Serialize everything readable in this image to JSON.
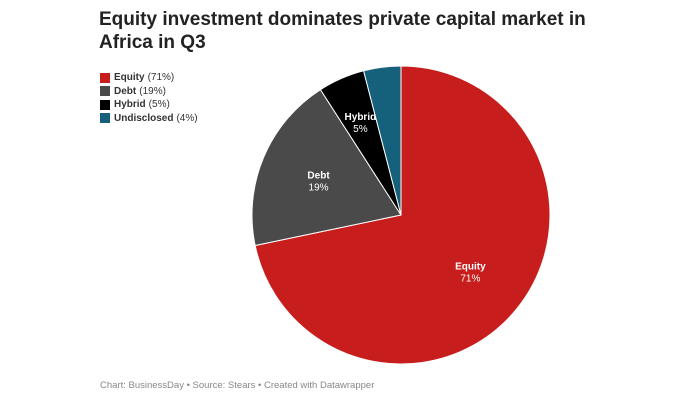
{
  "title": "Equity investment dominates private capital market in Africa in Q3",
  "footer": "Chart: BusinessDay • Source: Stears • Created with Datawrapper",
  "chart_data": {
    "type": "pie",
    "title": "Equity investment dominates private capital market in Africa in Q3",
    "legend_position": "top-left",
    "slices": [
      {
        "name": "Equity",
        "value": 71,
        "label": "71%",
        "legend_value": "(71%)",
        "color": "#c71e1d"
      },
      {
        "name": "Debt",
        "value": 19,
        "label": "19%",
        "legend_value": "(19%)",
        "color": "#4a4a4a"
      },
      {
        "name": "Hybrid",
        "value": 5,
        "label": "5%",
        "legend_value": "(5%)",
        "color": "#000000"
      },
      {
        "name": "Undisclosed",
        "value": 4,
        "label": "",
        "legend_value": "(4%)",
        "color": "#15607a"
      }
    ]
  }
}
